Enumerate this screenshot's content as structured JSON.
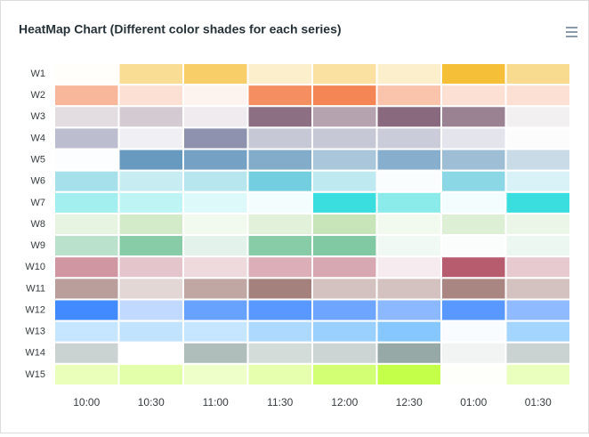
{
  "chart_data": {
    "type": "heatmap",
    "title": "HeatMap Chart (Different color shades for each series)",
    "categories": [
      "10:00",
      "10:30",
      "11:00",
      "11:30",
      "12:00",
      "12:30",
      "01:00",
      "01:30"
    ],
    "series": [
      {
        "name": "W1",
        "color": "#F3B415",
        "values": [
          2,
          45,
          65,
          22,
          40,
          22,
          85,
          48
        ]
      },
      {
        "name": "W2",
        "color": "#F27036",
        "values": [
          50,
          22,
          8,
          78,
          85,
          42,
          22,
          22
        ]
      },
      {
        "name": "W3",
        "color": "#663F59",
        "values": [
          18,
          28,
          10,
          75,
          48,
          78,
          65,
          8
        ]
      },
      {
        "name": "W4",
        "color": "#6A6E94",
        "values": [
          45,
          10,
          75,
          38,
          38,
          35,
          18,
          2
        ]
      },
      {
        "name": "W5",
        "color": "#4E88B4",
        "values": [
          2,
          85,
          78,
          70,
          48,
          68,
          55,
          30
        ]
      },
      {
        "name": "W6",
        "color": "#00A7C6",
        "values": [
          35,
          22,
          28,
          55,
          25,
          2,
          45,
          15
        ]
      },
      {
        "name": "W7",
        "color": "#18D8D8",
        "values": [
          40,
          28,
          15,
          5,
          85,
          50,
          5,
          85
        ]
      },
      {
        "name": "W8",
        "color": "#A9D794",
        "values": [
          28,
          50,
          15,
          35,
          65,
          15,
          40,
          22
        ]
      },
      {
        "name": "W9",
        "color": "#46AF78",
        "values": [
          38,
          65,
          15,
          65,
          68,
          8,
          2,
          10
        ]
      },
      {
        "name": "W10",
        "color": "#A93F55",
        "values": [
          55,
          30,
          20,
          42,
          45,
          10,
          85,
          28
        ]
      },
      {
        "name": "W11",
        "color": "#8C5E58",
        "values": [
          60,
          25,
          55,
          78,
          38,
          38,
          75,
          38
        ]
      },
      {
        "name": "W12",
        "color": "#2176FF",
        "values": [
          85,
          28,
          68,
          75,
          65,
          52,
          75,
          50
        ]
      },
      {
        "name": "W13",
        "color": "#33A1FD",
        "values": [
          28,
          30,
          28,
          40,
          50,
          60,
          3,
          45
        ]
      },
      {
        "name": "W14",
        "color": "#7A918D",
        "values": [
          40,
          0,
          60,
          32,
          38,
          78,
          10,
          40
        ]
      },
      {
        "name": "W15",
        "color": "#BAFF29",
        "values": [
          32,
          40,
          25,
          38,
          65,
          85,
          2,
          30
        ]
      }
    ]
  }
}
